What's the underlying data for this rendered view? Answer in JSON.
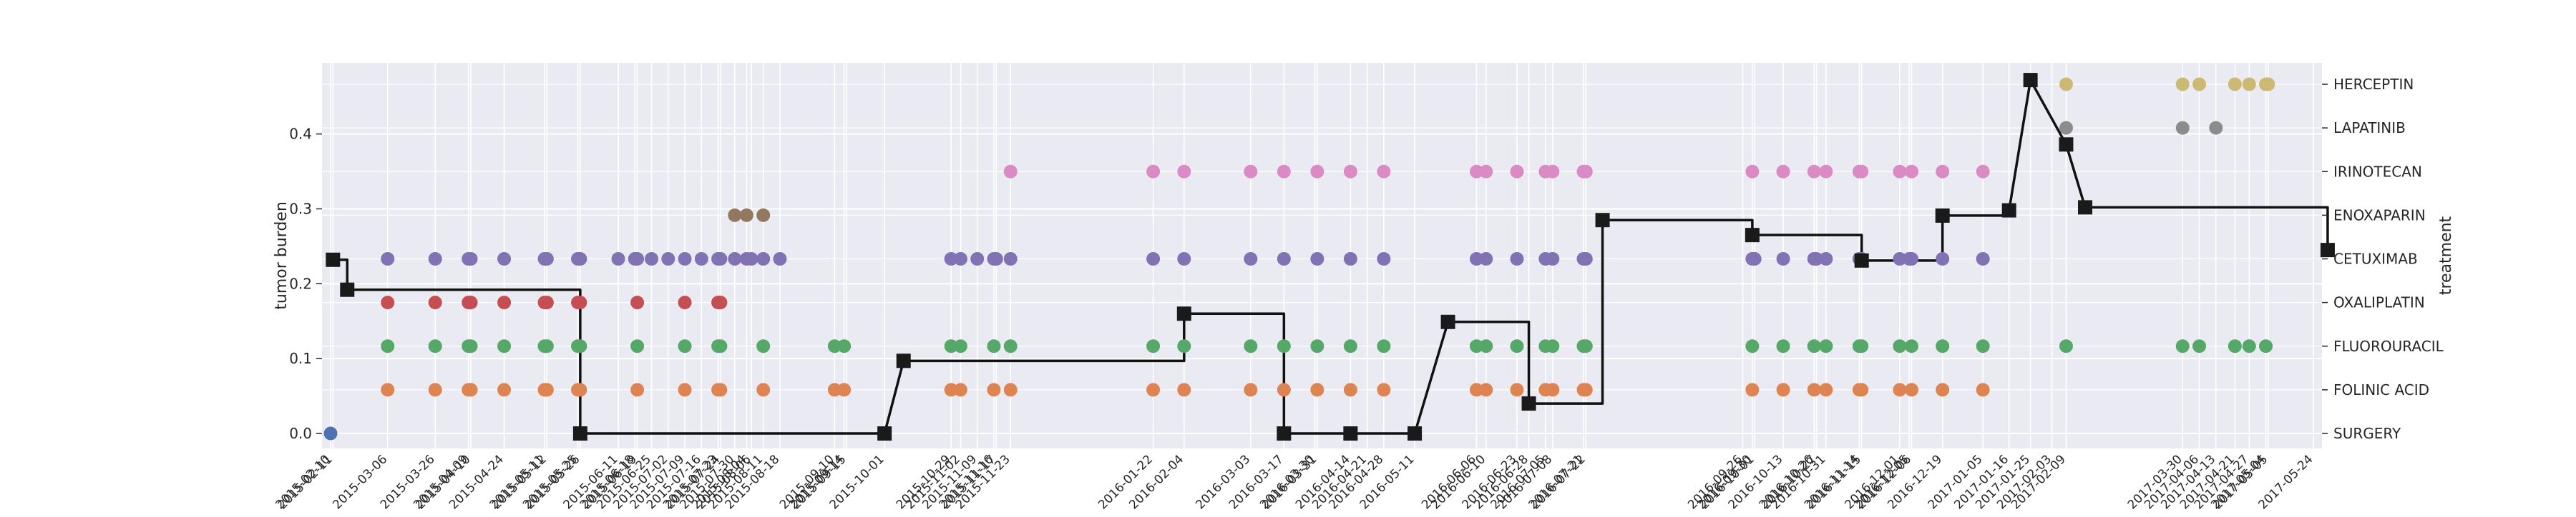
{
  "chart_data": {
    "type": "scatter",
    "title": "",
    "ylabel": "tumor burden",
    "y2label": "treatment",
    "ylim": [
      -0.02,
      0.495
    ],
    "yticks": [
      0.0,
      0.1,
      0.2,
      0.3,
      0.4
    ],
    "ytick_labels": [
      "0.0",
      "0.1",
      "0.2",
      "0.3",
      "0.4"
    ],
    "grid": true,
    "colors": {
      "plot_bg": "#eaeaf2",
      "grid": "#ffffff",
      "line": "#111111",
      "SURGERY": "#4c72b0",
      "FOLINIC ACID": "#dd8452",
      "FLUOROURACIL": "#55a868",
      "OXALIPLATIN": "#c44e52",
      "CETUXIMAB": "#8172b3",
      "ENOXAPARIN": "#937860",
      "IRINOTECAN": "#da8bc3",
      "LAPATINIB": "#8c8c8c",
      "HERCEPTIN": "#ccb974"
    },
    "x_dates": [
      "2015-02-10",
      "2015-02-11",
      "2015-03-06",
      "2015-03-26",
      "2015-04-09",
      "2015-04-10",
      "2015-04-24",
      "2015-05-11",
      "2015-05-12",
      "2015-05-25",
      "2015-05-26",
      "2015-06-11",
      "2015-06-18",
      "2015-06-19",
      "2015-06-25",
      "2015-07-02",
      "2015-07-09",
      "2015-07-16",
      "2015-07-23",
      "2015-07-24",
      "2015-07-30",
      "2015-08-04",
      "2015-08-06",
      "2015-08-11",
      "2015-08-18",
      "2015-09-10",
      "2015-09-14",
      "2015-09-15",
      "2015-10-01",
      "2015-10-29",
      "2015-11-02",
      "2015-11-09",
      "2015-11-16",
      "2015-11-17",
      "2015-11-23",
      "2016-01-22",
      "2016-02-04",
      "2016-03-03",
      "2016-03-17",
      "2016-03-30",
      "2016-03-31",
      "2016-04-14",
      "2016-04-21",
      "2016-04-28",
      "2016-05-11",
      "2016-06-06",
      "2016-06-10",
      "2016-06-23",
      "2016-06-28",
      "2016-07-05",
      "2016-07-08",
      "2016-07-21",
      "2016-07-22",
      "2016-09-26",
      "2016-09-30",
      "2016-10-01",
      "2016-10-13",
      "2016-10-26",
      "2016-10-27",
      "2016-10-31",
      "2016-11-14",
      "2016-11-15",
      "2016-12-01",
      "2016-12-05",
      "2016-12-06",
      "2016-12-19",
      "2017-01-05",
      "2017-01-16",
      "2017-01-25",
      "2017-02-03",
      "2017-02-09",
      "2017-03-30",
      "2017-04-06",
      "2017-04-13",
      "2017-04-21",
      "2017-04-27",
      "2017-05-04",
      "2017-05-05",
      "2017-05-24"
    ],
    "treatments": [
      "SURGERY",
      "FOLINIC ACID",
      "FLUOROURACIL",
      "OXALIPLATIN",
      "CETUXIMAB",
      "ENOXAPARIN",
      "IRINOTECAN",
      "LAPATINIB",
      "HERCEPTIN"
    ],
    "tumor_burden": [
      {
        "x": "2015-02-11",
        "y": 0.232
      },
      {
        "x": "2015-02-17",
        "y": 0.192
      },
      {
        "x": "2015-05-26",
        "y": 0.0
      },
      {
        "x": "2015-10-01",
        "y": 0.0
      },
      {
        "x": "2015-10-09",
        "y": 0.097
      },
      {
        "x": "2016-02-04",
        "y": 0.16
      },
      {
        "x": "2016-03-17",
        "y": 0.0
      },
      {
        "x": "2016-04-14",
        "y": 0.0
      },
      {
        "x": "2016-05-11",
        "y": 0.0
      },
      {
        "x": "2016-05-25",
        "y": 0.149
      },
      {
        "x": "2016-06-28",
        "y": 0.04
      },
      {
        "x": "2016-07-29",
        "y": 0.285
      },
      {
        "x": "2016-09-30",
        "y": 0.265
      },
      {
        "x": "2016-11-15",
        "y": 0.231
      },
      {
        "x": "2016-12-19",
        "y": 0.291
      },
      {
        "x": "2017-01-16",
        "y": 0.298
      },
      {
        "x": "2017-01-25",
        "y": 0.472
      },
      {
        "x": "2017-02-09",
        "y": 0.386
      },
      {
        "x": "2017-02-17",
        "y": 0.302
      },
      {
        "x": "2017-05-30",
        "y": 0.245
      }
    ],
    "treatment_events": {
      "SURGERY": [
        "2015-02-10"
      ],
      "FOLINIC ACID": [
        "2015-03-06",
        "2015-03-26",
        "2015-04-09",
        "2015-04-10",
        "2015-04-24",
        "2015-05-11",
        "2015-05-12",
        "2015-05-25",
        "2015-05-26",
        "2015-06-19",
        "2015-07-09",
        "2015-07-23",
        "2015-07-24",
        "2015-08-11",
        "2015-09-10",
        "2015-09-14",
        "2015-10-29",
        "2015-11-02",
        "2015-11-16",
        "2015-11-23",
        "2016-01-22",
        "2016-02-04",
        "2016-03-03",
        "2016-03-17",
        "2016-03-31",
        "2016-04-14",
        "2016-04-28",
        "2016-06-06",
        "2016-06-10",
        "2016-06-23",
        "2016-07-05",
        "2016-07-08",
        "2016-07-21",
        "2016-07-22",
        "2016-09-30",
        "2016-10-13",
        "2016-10-26",
        "2016-10-31",
        "2016-11-14",
        "2016-11-15",
        "2016-12-01",
        "2016-12-06",
        "2016-12-19",
        "2017-01-05"
      ],
      "FLUOROURACIL": [
        "2015-03-06",
        "2015-03-26",
        "2015-04-09",
        "2015-04-10",
        "2015-04-24",
        "2015-05-11",
        "2015-05-12",
        "2015-05-25",
        "2015-05-26",
        "2015-06-19",
        "2015-07-09",
        "2015-07-23",
        "2015-07-24",
        "2015-08-11",
        "2015-09-10",
        "2015-09-14",
        "2015-10-29",
        "2015-11-02",
        "2015-11-16",
        "2015-11-23",
        "2016-01-22",
        "2016-02-04",
        "2016-03-03",
        "2016-03-17",
        "2016-03-31",
        "2016-04-14",
        "2016-04-28",
        "2016-06-06",
        "2016-06-10",
        "2016-06-23",
        "2016-07-05",
        "2016-07-08",
        "2016-07-21",
        "2016-07-22",
        "2016-09-30",
        "2016-10-13",
        "2016-10-26",
        "2016-10-31",
        "2016-11-14",
        "2016-11-15",
        "2016-12-01",
        "2016-12-06",
        "2016-12-19",
        "2017-01-05",
        "2017-02-09",
        "2017-03-30",
        "2017-04-06",
        "2017-04-21",
        "2017-04-27",
        "2017-05-04"
      ],
      "OXALIPLATIN": [
        "2015-03-06",
        "2015-03-26",
        "2015-04-09",
        "2015-04-10",
        "2015-04-24",
        "2015-05-11",
        "2015-05-12",
        "2015-05-25",
        "2015-05-26",
        "2015-06-19",
        "2015-07-09",
        "2015-07-23",
        "2015-07-24"
      ],
      "CETUXIMAB": [
        "2015-03-06",
        "2015-03-26",
        "2015-04-09",
        "2015-04-10",
        "2015-04-24",
        "2015-05-11",
        "2015-05-12",
        "2015-05-25",
        "2015-05-26",
        "2015-06-11",
        "2015-06-18",
        "2015-06-19",
        "2015-06-25",
        "2015-07-02",
        "2015-07-09",
        "2015-07-16",
        "2015-07-23",
        "2015-07-24",
        "2015-07-30",
        "2015-08-04",
        "2015-08-06",
        "2015-08-11",
        "2015-08-18",
        "2015-10-29",
        "2015-11-02",
        "2015-11-09",
        "2015-11-16",
        "2015-11-17",
        "2015-11-23",
        "2016-01-22",
        "2016-02-04",
        "2016-03-03",
        "2016-03-17",
        "2016-03-31",
        "2016-04-14",
        "2016-04-28",
        "2016-06-06",
        "2016-06-10",
        "2016-06-23",
        "2016-07-05",
        "2016-07-08",
        "2016-07-21",
        "2016-07-22",
        "2016-09-30",
        "2016-10-01",
        "2016-10-13",
        "2016-10-26",
        "2016-10-27",
        "2016-10-31",
        "2016-11-14",
        "2016-11-15",
        "2016-12-01",
        "2016-12-05",
        "2016-12-06",
        "2016-12-19",
        "2017-01-05"
      ],
      "ENOXAPARIN": [
        "2015-07-30",
        "2015-08-04",
        "2015-08-11"
      ],
      "IRINOTECAN": [
        "2015-11-23",
        "2016-01-22",
        "2016-02-04",
        "2016-03-03",
        "2016-03-17",
        "2016-03-31",
        "2016-04-14",
        "2016-04-28",
        "2016-06-06",
        "2016-06-10",
        "2016-06-23",
        "2016-07-05",
        "2016-07-08",
        "2016-07-21",
        "2016-07-22",
        "2016-09-30",
        "2016-10-13",
        "2016-10-26",
        "2016-10-31",
        "2016-11-14",
        "2016-11-15",
        "2016-12-01",
        "2016-12-06",
        "2016-12-19",
        "2017-01-05"
      ],
      "LAPATINIB": [
        "2017-02-09",
        "2017-03-30",
        "2017-04-13"
      ],
      "HERCEPTIN": [
        "2017-02-09",
        "2017-03-30",
        "2017-04-06",
        "2017-04-21",
        "2017-04-27",
        "2017-05-04",
        "2017-05-05"
      ]
    }
  }
}
